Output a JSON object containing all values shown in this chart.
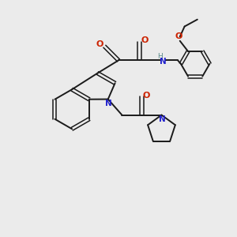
{
  "background_color": "#ebebeb",
  "bond_color": "#1a1a1a",
  "N_color": "#2222cc",
  "O_color": "#cc2200",
  "H_color": "#5a8a8a",
  "figsize": [
    3.0,
    3.0
  ],
  "dpi": 100,
  "xlim": [
    0,
    10
  ],
  "ylim": [
    0,
    10
  ]
}
